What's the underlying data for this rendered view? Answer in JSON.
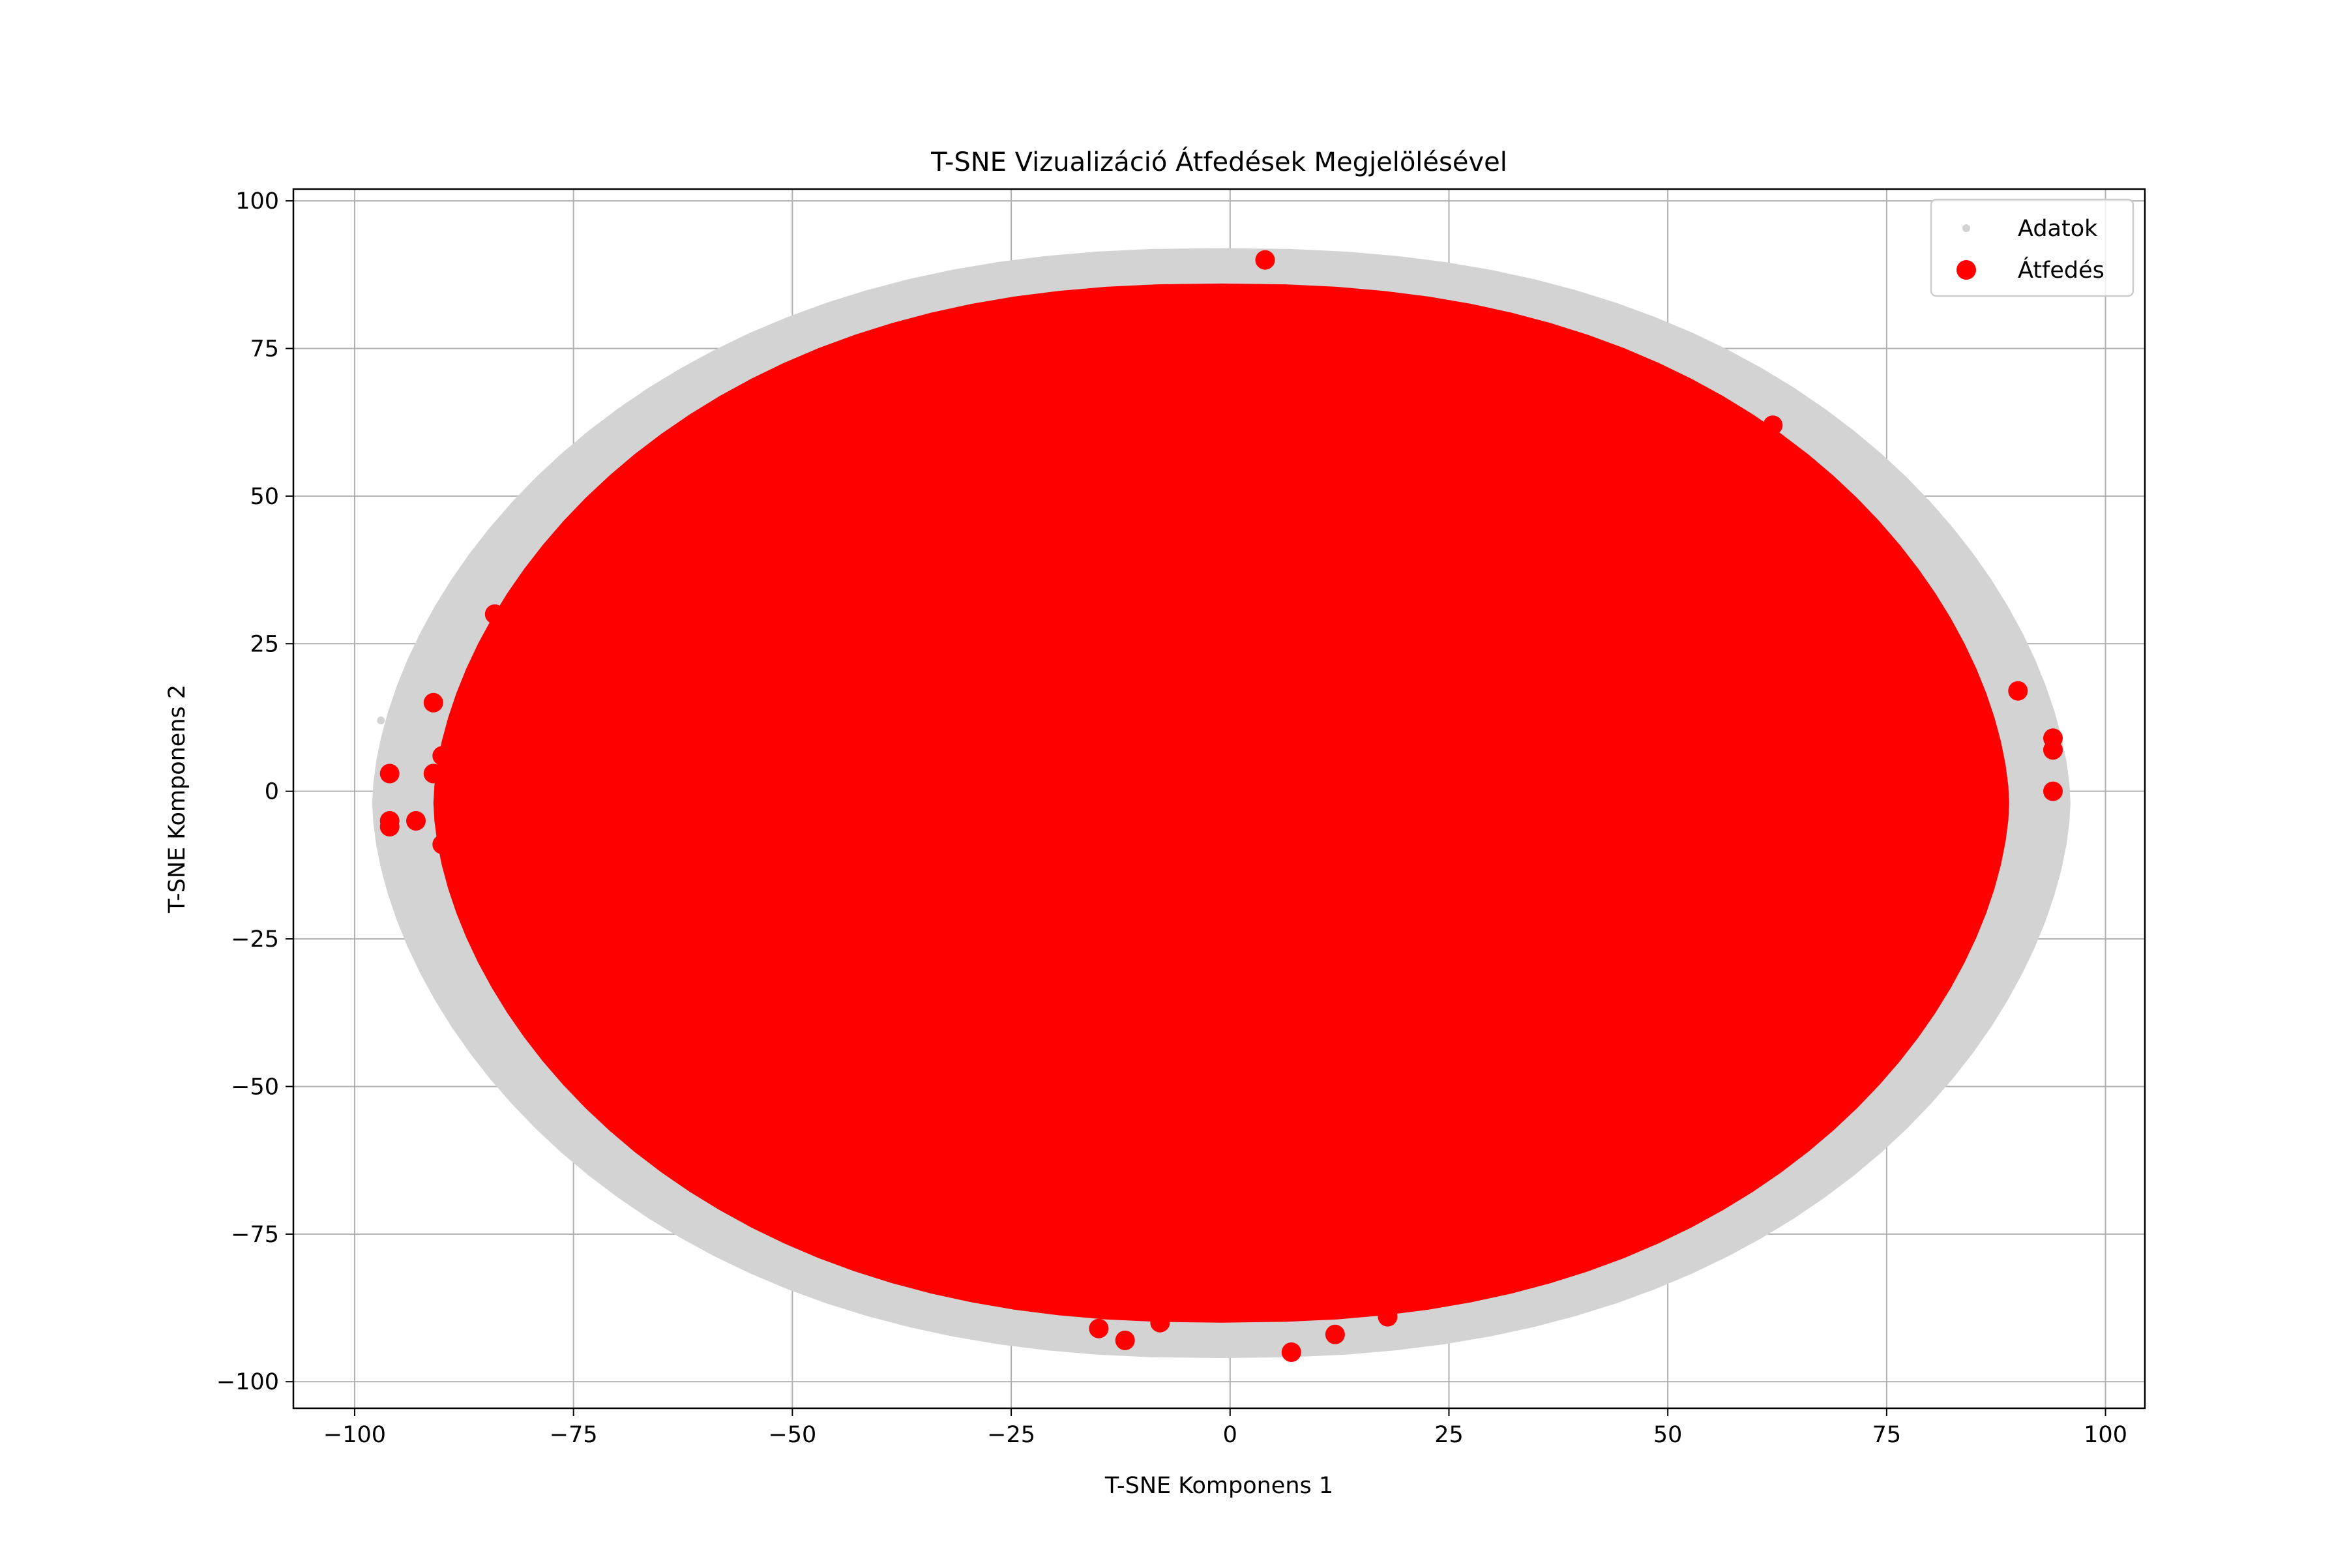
{
  "chart_data": {
    "type": "scatter",
    "title": "T-SNE Vizualizáció Átfedések Megjelölésével",
    "xlabel": "T-SNE Komponens 1",
    "ylabel": "T-SNE Komponens 2",
    "xlim": [
      -107,
      104.5
    ],
    "ylim": [
      -104.5,
      102
    ],
    "xticks": [
      -100,
      -75,
      -50,
      -25,
      0,
      25,
      50,
      75,
      100
    ],
    "yticks": [
      -100,
      -75,
      -50,
      -25,
      0,
      25,
      50,
      75,
      100
    ],
    "grid": true,
    "legend_position": "top-right",
    "series": [
      {
        "name": "Adatok",
        "color": "#d3d3d3",
        "marker": "small-dot",
        "region": {
          "center": [
            -1,
            -2
          ],
          "half_width": 97,
          "half_height": 94,
          "shape": "lens"
        },
        "points": [
          [
            -97,
            12
          ],
          [
            -96,
            -6
          ],
          [
            -92,
            -15
          ],
          [
            -88,
            -27
          ],
          [
            -84,
            -40
          ],
          [
            -76,
            -50
          ],
          [
            -65,
            -62
          ],
          [
            -55,
            -75
          ],
          [
            -38,
            -84
          ],
          [
            -20,
            -90
          ],
          [
            0,
            -93
          ],
          [
            20,
            -89
          ],
          [
            40,
            -80
          ],
          [
            55,
            -70
          ],
          [
            68,
            -55
          ],
          [
            78,
            -45
          ],
          [
            85,
            -30
          ],
          [
            90,
            -20
          ],
          [
            94,
            -8
          ],
          [
            93,
            5
          ],
          [
            88,
            20
          ],
          [
            80,
            35
          ],
          [
            72,
            48
          ],
          [
            62,
            60
          ],
          [
            50,
            68
          ],
          [
            35,
            77
          ],
          [
            20,
            84
          ],
          [
            5,
            90
          ],
          [
            -10,
            89
          ],
          [
            -25,
            84
          ],
          [
            -40,
            76
          ],
          [
            -55,
            63
          ],
          [
            -68,
            50
          ],
          [
            -78,
            35
          ],
          [
            -86,
            20
          ],
          [
            -92,
            5
          ]
        ]
      },
      {
        "name": "Átfedés",
        "color": "#ff0000",
        "marker": "large-dot",
        "region": {
          "center": [
            -1,
            -2
          ],
          "half_width": 90,
          "half_height": 88,
          "shape": "lens"
        },
        "points": [
          [
            -96,
            3
          ],
          [
            -96,
            -5
          ],
          [
            -96,
            -6
          ],
          [
            -93,
            -5
          ],
          [
            -91,
            15
          ],
          [
            -91,
            3
          ],
          [
            -90,
            6
          ],
          [
            -90,
            -9
          ],
          [
            -84,
            30
          ],
          [
            -83,
            -29
          ],
          [
            -70,
            -45
          ],
          [
            -63,
            -55
          ],
          [
            -58,
            -60
          ],
          [
            -52,
            -63
          ],
          [
            -43,
            73
          ],
          [
            -35,
            -83
          ],
          [
            -15,
            -91
          ],
          [
            -12,
            -93
          ],
          [
            -8,
            -90
          ],
          [
            4,
            90
          ],
          [
            7,
            -95
          ],
          [
            12,
            -92
          ],
          [
            18,
            -89
          ],
          [
            27,
            -83
          ],
          [
            31,
            -82
          ],
          [
            54,
            60
          ],
          [
            58,
            56
          ],
          [
            62,
            62
          ],
          [
            64,
            -48
          ],
          [
            72,
            45
          ],
          [
            78,
            -30
          ],
          [
            81,
            17
          ],
          [
            90,
            17
          ],
          [
            94,
            9
          ],
          [
            94,
            7
          ],
          [
            94,
            0
          ],
          [
            52,
            -61
          ],
          [
            -28,
            77
          ]
        ]
      }
    ]
  }
}
